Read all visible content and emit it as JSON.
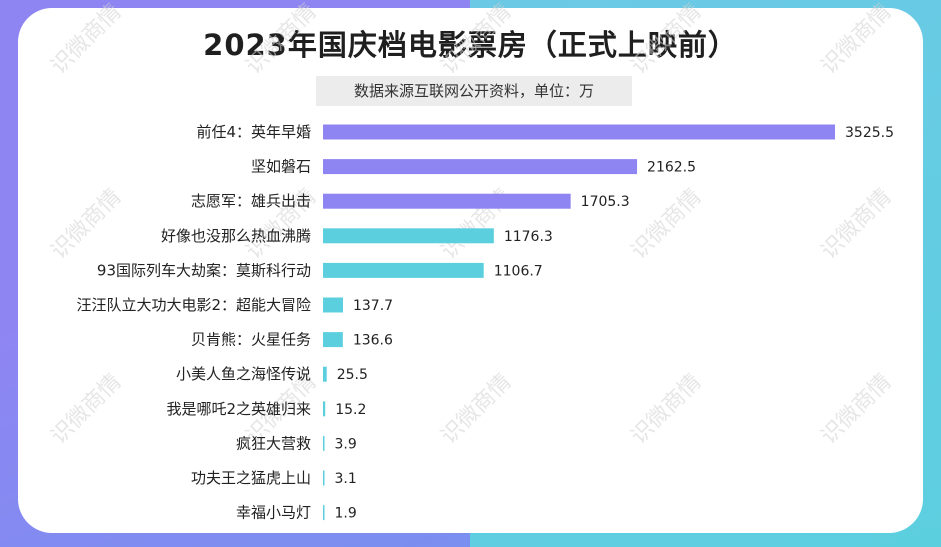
{
  "chart_data": {
    "type": "bar",
    "orientation": "horizontal",
    "title": "2023年国庆档电影票房（正式上映前）",
    "subtitle": "数据来源互联网公开资料，单位：万",
    "categories": [
      "前任4：英年早婚",
      "坚如磐石",
      "志愿军：雄兵出击",
      "好像也没那么热血沸腾",
      "93国际列车大劫案：莫斯科行动",
      "汪汪队立大功大电影2：超能大冒险",
      "贝肯熊：火星任务",
      "小美人鱼之海怪传说",
      "我是哪吒2之英雄归来",
      "疯狂大营救",
      "功夫王之猛虎上山",
      "幸福小马灯"
    ],
    "values": [
      3525.5,
      2162.5,
      1705.3,
      1176.3,
      1106.7,
      137.7,
      136.6,
      25.5,
      15.2,
      3.9,
      3.1,
      1.9
    ],
    "value_labels": [
      "3525.5",
      "2162.5",
      "1705.3",
      "1176.3",
      "1106.7",
      "137.7",
      "136.6",
      "25.5",
      "15.2",
      "3.9",
      "3.1",
      "1.9"
    ],
    "xlim": [
      0,
      3525.5
    ],
    "grid": false,
    "legend": "none",
    "colors": {
      "top3": "#8f85f2",
      "rest": "#5ccfdf",
      "background_left": "#8f85f2",
      "background_right": "#5ccfdf"
    }
  },
  "watermark": "识微商情"
}
